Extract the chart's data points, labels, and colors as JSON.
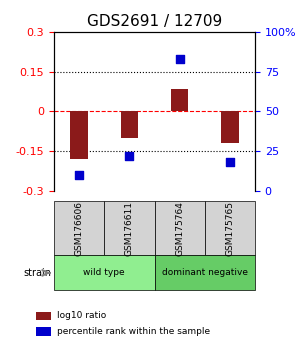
{
  "title": "GDS2691 / 12709",
  "samples": [
    "GSM176606",
    "GSM176611",
    "GSM175764",
    "GSM175765"
  ],
  "log10_ratio": [
    -0.18,
    -0.1,
    0.085,
    -0.12
  ],
  "percentile_rank": [
    10,
    22,
    83,
    18
  ],
  "bar_color": "#8B1A1A",
  "dot_color": "#0000CC",
  "ylim_left": [
    -0.3,
    0.3
  ],
  "ylim_right": [
    0,
    100
  ],
  "yticks_left": [
    -0.3,
    -0.15,
    0,
    0.15,
    0.3
  ],
  "yticks_right": [
    0,
    25,
    50,
    75,
    100
  ],
  "hlines": [
    -0.15,
    0.0,
    0.15
  ],
  "hline_styles": [
    "dotted",
    "dashed",
    "dotted"
  ],
  "hline_colors": [
    "black",
    "red",
    "black"
  ],
  "groups": [
    {
      "label": "wild type",
      "samples": [
        0,
        1
      ],
      "color": "#90EE90"
    },
    {
      "label": "dominant negative",
      "samples": [
        2,
        3
      ],
      "color": "#66CC66"
    }
  ],
  "strain_label": "strain",
  "legend_entries": [
    {
      "color": "#8B1A1A",
      "label": "log10 ratio"
    },
    {
      "color": "#0000CC",
      "label": "percentile rank within the sample"
    }
  ],
  "title_fontsize": 11,
  "tick_fontsize": 8,
  "label_fontsize": 8
}
